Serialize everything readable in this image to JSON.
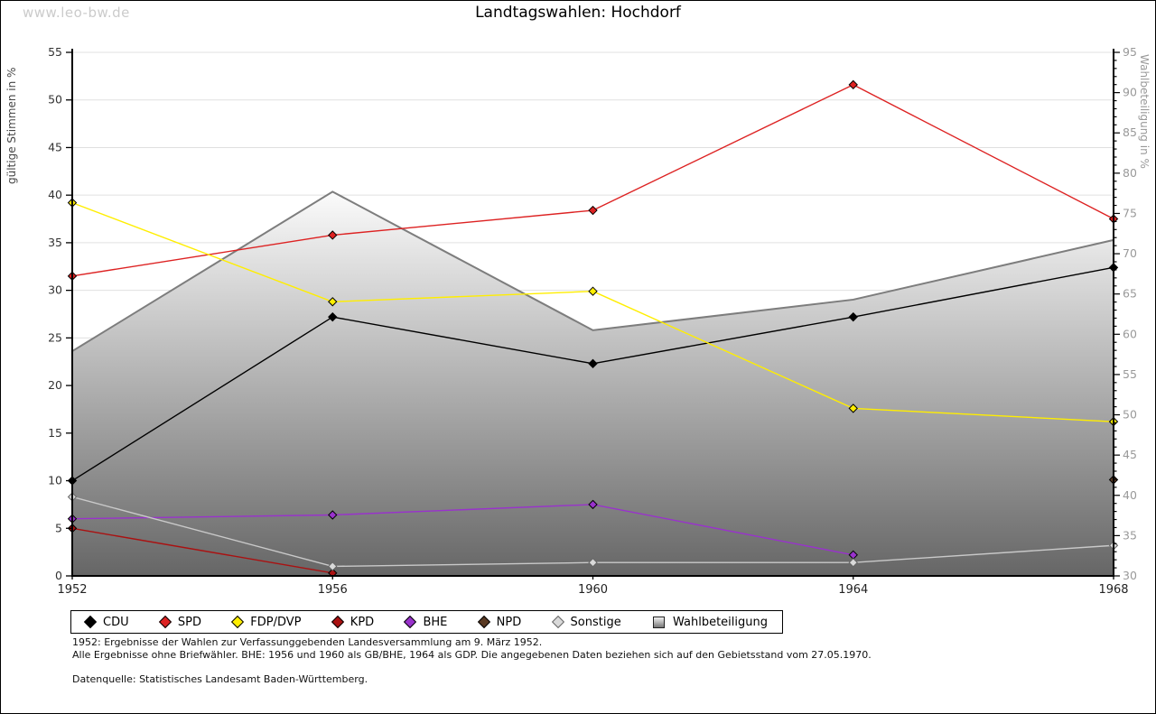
{
  "watermark": "www.leo-bw.de",
  "title": "Landtagswahlen: Hochdorf",
  "axes": {
    "left_label": "gültige Stimmen in %",
    "right_label": "Wahlbeteiligung in %"
  },
  "footnotes": {
    "line1": "1952: Ergebnisse der Wahlen zur Verfassunggebenden Landesversammlung am 9. März 1952.",
    "line2": "Alle Ergebnisse ohne Briefwähler. BHE: 1956 und 1960 als GB/BHE, 1964 als GDP. Die angegebenen Daten beziehen sich auf den Gebietsstand vom 27.05.1970.",
    "source": "Datenquelle: Statistisches Landesamt Baden-Württemberg."
  },
  "chart_data": {
    "type": "line",
    "title": "Landtagswahlen: Hochdorf",
    "categories": [
      1952,
      1956,
      1960,
      1964,
      1968
    ],
    "left_axis": {
      "label": "gültige Stimmen in %",
      "min": 0,
      "max": 55,
      "tick_step": 5
    },
    "right_axis": {
      "label": "Wahlbeteiligung in %",
      "min": 30,
      "max": 95,
      "tick_step": 5,
      "minor_tick_step": 1
    },
    "grid": true,
    "legend_position": "bottom",
    "colors": {
      "grid": "#e0e0e0",
      "axis": "#000000",
      "area_edge": "#7d7d7d",
      "area_gradient_top": "#fbfbfb",
      "area_gradient_bottom": "#666666",
      "right_tick_text": "#999999",
      "left_tick_text": "#333333"
    },
    "series": [
      {
        "name": "CDU",
        "kind": "line",
        "axis": "left",
        "color": "#000000",
        "marker_stroke": "#000000",
        "values": [
          10.0,
          27.2,
          22.3,
          27.2,
          32.4
        ]
      },
      {
        "name": "SPD",
        "kind": "line",
        "axis": "left",
        "color": "#dd2222",
        "marker_stroke": "#000000",
        "values": [
          31.5,
          35.8,
          38.4,
          51.6,
          37.5
        ]
      },
      {
        "name": "FDP/DVP",
        "kind": "line",
        "axis": "left",
        "color": "#ffee00",
        "marker_stroke": "#000000",
        "values": [
          39.2,
          28.8,
          29.9,
          17.6,
          16.2
        ]
      },
      {
        "name": "KPD",
        "kind": "line",
        "axis": "left",
        "color": "#aa1111",
        "marker_stroke": "#000000",
        "values": [
          5.0,
          0.3,
          null,
          null,
          null
        ]
      },
      {
        "name": "BHE",
        "kind": "line",
        "axis": "left",
        "color": "#9932cc",
        "marker_stroke": "#000000",
        "values": [
          6.0,
          6.4,
          7.5,
          2.2,
          null
        ]
      },
      {
        "name": "NPD",
        "kind": "line",
        "axis": "left",
        "color": "#5a3a23",
        "marker_stroke": "#000000",
        "values": [
          null,
          null,
          null,
          null,
          10.1
        ]
      },
      {
        "name": "Sonstige",
        "kind": "line",
        "axis": "left",
        "color": "#c9c9c9",
        "marker_fill": "#d9d9d9",
        "marker_stroke": "#666666",
        "values": [
          8.3,
          1.0,
          1.4,
          1.4,
          3.2
        ]
      },
      {
        "name": "Wahlbeteiligung",
        "kind": "area",
        "axis": "right",
        "color": "#888888",
        "values": [
          57.9,
          77.7,
          60.5,
          64.3,
          71.7
        ]
      }
    ]
  }
}
